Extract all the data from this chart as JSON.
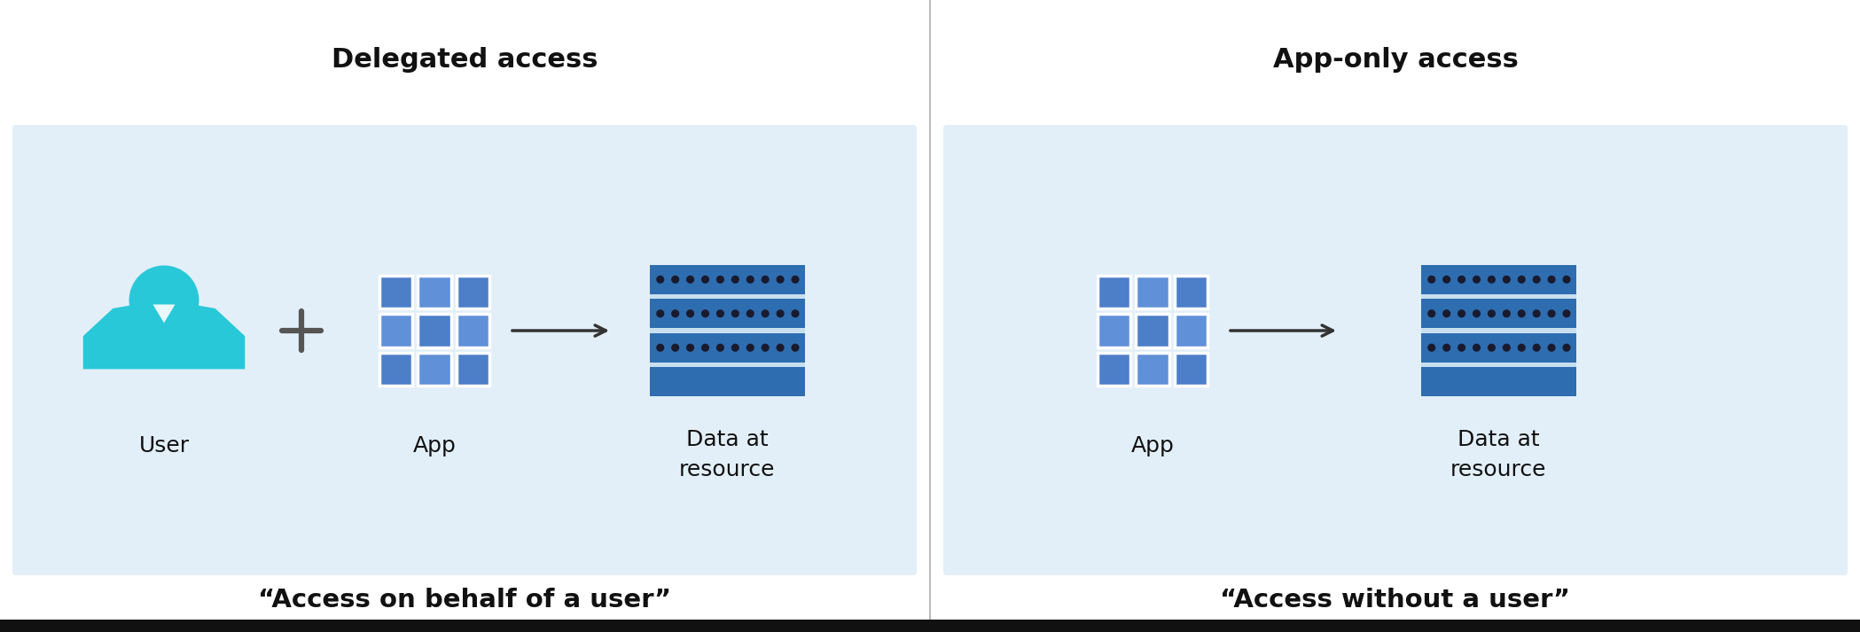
{
  "fig_width": 20.98,
  "fig_height": 7.13,
  "bg_color": "#ffffff",
  "panel_bg_left": "#e2eff8",
  "panel_bg_right": "#e2eff8",
  "title_left": "Delegated access",
  "title_right": "App-only access",
  "subtitle_left": "“Access on behalf of a user”",
  "subtitle_right": "“Access without a user”",
  "label_user": "User",
  "label_app": "App",
  "label_data": "Data at\nresource",
  "title_fontsize": 22,
  "subtitle_fontsize": 21,
  "label_fontsize": 18,
  "user_teal": "#28c8d8",
  "app_tile_a": "#4d7ec8",
  "app_tile_b": "#6090d8",
  "server_blue": "#2e6db0",
  "server_light": "#c8dff0",
  "server_dot": "#111111",
  "bottom_bar_color": "#111111",
  "divider_color": "#bbbbbb",
  "arrow_color": "#333333"
}
